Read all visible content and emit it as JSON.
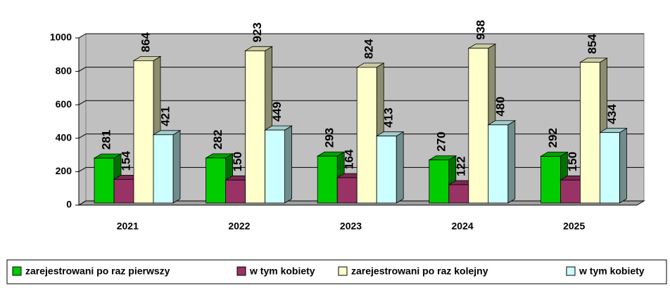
{
  "chart_data": {
    "type": "bar3d",
    "categories": [
      "2021",
      "2022",
      "2023",
      "2024",
      "2025"
    ],
    "series": [
      {
        "name": "zarejestrowani po raz pierwszy",
        "color": "#00cc00",
        "values": [
          281,
          282,
          293,
          270,
          292
        ]
      },
      {
        "name": "w tym kobiety",
        "color": "#993366",
        "values": [
          154,
          150,
          164,
          122,
          150
        ]
      },
      {
        "name": "zarejestrowani po raz kolejny",
        "color": "#ffffcc",
        "values": [
          864,
          923,
          824,
          938,
          854
        ]
      },
      {
        "name": "w tym kobiety",
        "color": "#ccffff",
        "values": [
          421,
          449,
          413,
          480,
          434
        ]
      }
    ],
    "ylim": [
      0,
      1000
    ],
    "yticks": [
      0,
      200,
      400,
      600,
      800,
      1000
    ],
    "grid": true,
    "legend": "bottom"
  }
}
